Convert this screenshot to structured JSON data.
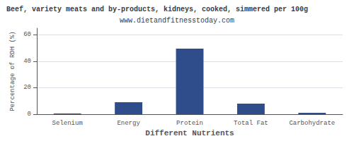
{
  "chart_data": {
    "type": "bar",
    "title": "Beef, variety meats and by-products, kidneys, cooked, simmered per 100g",
    "subtitle": "www.dietandfitnesstoday.com",
    "xlabel": "Different Nutrients",
    "ylabel": "Percentage of RDH (%)",
    "categories": [
      "Selenium",
      "Energy",
      "Protein",
      "Total Fat",
      "Carbohydrate"
    ],
    "values": [
      0.5,
      9.0,
      49.5,
      8.0,
      1.0
    ],
    "color": "#2e4d8a",
    "ylim": [
      0,
      65
    ],
    "yticks": [
      0,
      20,
      40,
      60
    ],
    "grid": true
  }
}
